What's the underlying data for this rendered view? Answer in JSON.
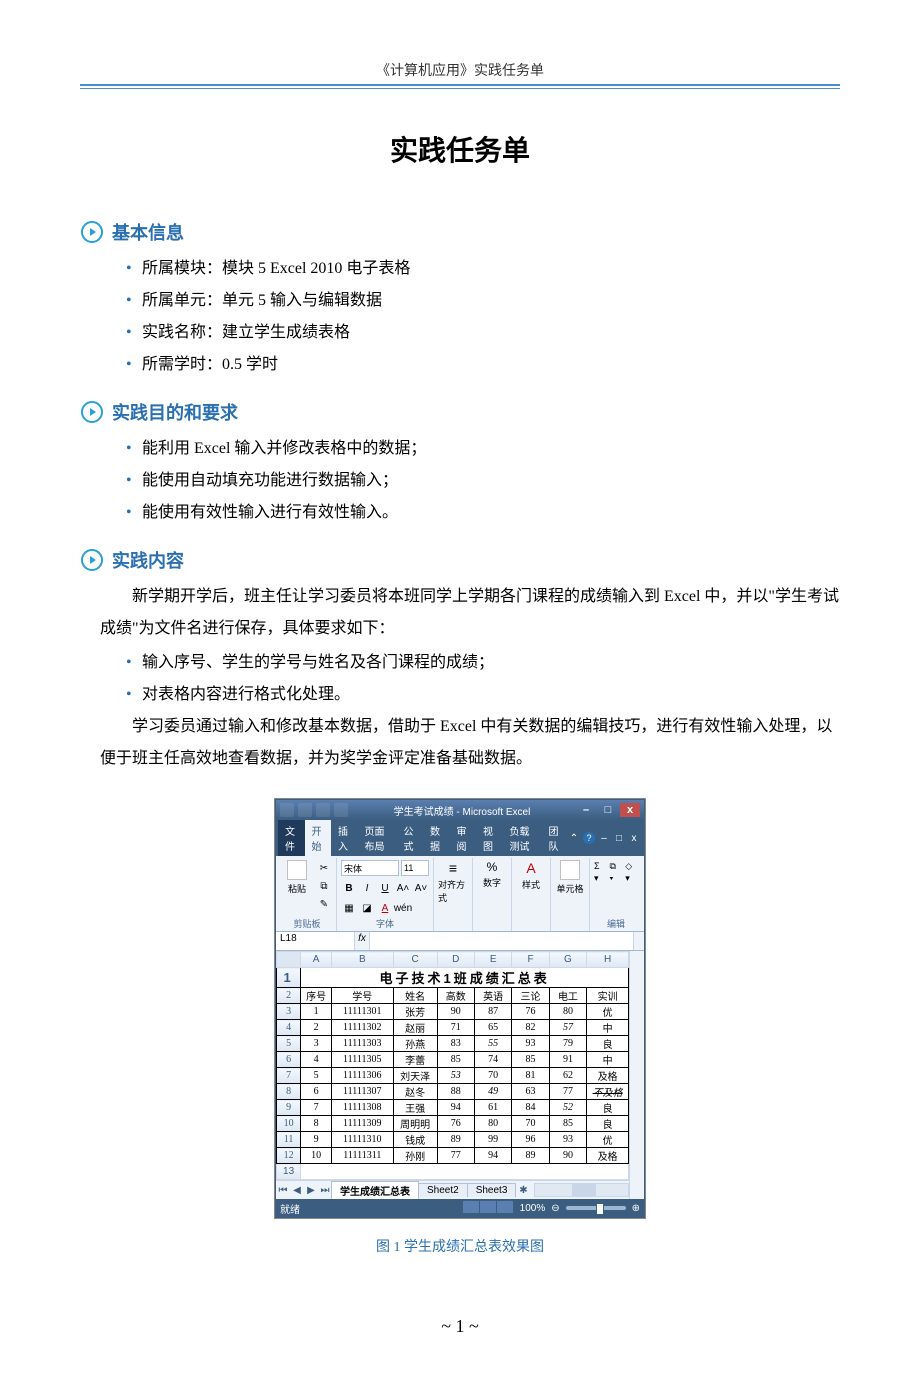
{
  "header": {
    "running_title": "《计算机应用》实践任务单"
  },
  "title": "实践任务单",
  "sections": {
    "basic": {
      "heading": "基本信息",
      "items": [
        "所属模块：模块 5 Excel 2010 电子表格",
        "所属单元：单元 5  输入与编辑数据",
        "实践名称：建立学生成绩表格",
        "所需学时：0.5 学时"
      ]
    },
    "goal": {
      "heading": "实践目的和要求",
      "items": [
        "能利用 Excel 输入并修改表格中的数据；",
        "能使用自动填充功能进行数据输入；",
        "能使用有效性输入进行有效性输入。"
      ]
    },
    "content": {
      "heading": "实践内容",
      "para1": "新学期开学后，班主任让学习委员将本班同学上学期各门课程的成绩输入到 Excel 中，并以\"学生考试成绩\"为文件名进行保存，具体要求如下：",
      "bullets": [
        "输入序号、学生的学号与姓名及各门课程的成绩；",
        "对表格内容进行格式化处理。"
      ],
      "para2": "学习委员通过输入和修改基本数据，借助于 Excel 中有关数据的编辑技巧，进行有效性输入处理，以便于班主任高效地查看数据，并为奖学金评定准备基础数据。"
    }
  },
  "figure_caption": "图 1  学生成绩汇总表效果图",
  "page_number": "~ 1 ~",
  "icon": {
    "stroke": "#2a9fd6",
    "fill_inner": "#2a9fd6"
  },
  "excel": {
    "window_title": "学生考试成绩 - Microsoft Excel",
    "tabs": [
      "文件",
      "开始",
      "插入",
      "页面布局",
      "公式",
      "数据",
      "审阅",
      "视图",
      "负载测试",
      "团队"
    ],
    "active_tab_index": 1,
    "ribbon_groups": {
      "clipboard": "剪贴板",
      "paste": "粘贴",
      "font": "字体",
      "font_name": "宋体",
      "font_size": "11",
      "align": "对齐方式",
      "number": "数字",
      "styles": "样式",
      "cells": "单元格",
      "editing": "编辑"
    },
    "name_box": "L18",
    "fx": "fx",
    "col_headers": [
      "A",
      "B",
      "C",
      "D",
      "E",
      "F",
      "G",
      "H"
    ],
    "row_headers": [
      "1",
      "2",
      "3",
      "4",
      "5",
      "6",
      "7",
      "8",
      "9",
      "10",
      "11",
      "12",
      "13"
    ],
    "table_title": "电子技术1班成绩汇总表",
    "header_row": [
      "序号",
      "学号",
      "姓名",
      "高数",
      "英语",
      "三论",
      "电工",
      "实训"
    ],
    "rows": [
      {
        "n": "1",
        "id": "11111301",
        "name": "张芳",
        "c1": "90",
        "c2": "87",
        "c3": "76",
        "c4": "80",
        "r": "优"
      },
      {
        "n": "2",
        "id": "11111302",
        "name": "赵丽",
        "c1": "71",
        "c2": "65",
        "c3": "82",
        "c4": "57",
        "r": "中",
        "c4_italic": true
      },
      {
        "n": "3",
        "id": "11111303",
        "name": "孙燕",
        "c1": "83",
        "c2": "55",
        "c3": "93",
        "c4": "79",
        "r": "良",
        "c2_italic": true
      },
      {
        "n": "4",
        "id": "11111305",
        "name": "李蕾",
        "c1": "85",
        "c2": "74",
        "c3": "85",
        "c4": "91",
        "r": "中"
      },
      {
        "n": "5",
        "id": "11111306",
        "name": "刘天泽",
        "c1": "53",
        "c2": "70",
        "c3": "81",
        "c4": "62",
        "r": "及格",
        "c1_italic": true
      },
      {
        "n": "6",
        "id": "11111307",
        "name": "赵冬",
        "c1": "88",
        "c2": "49",
        "c3": "63",
        "c4": "77",
        "r": "不及格",
        "c2_italic": true,
        "r_italic": true,
        "r_strike": true
      },
      {
        "n": "7",
        "id": "11111308",
        "name": "王强",
        "c1": "94",
        "c2": "61",
        "c3": "84",
        "c4": "52",
        "r": "良",
        "c4_italic": true
      },
      {
        "n": "8",
        "id": "11111309",
        "name": "周明明",
        "c1": "76",
        "c2": "80",
        "c3": "70",
        "c4": "85",
        "r": "良"
      },
      {
        "n": "9",
        "id": "11111310",
        "name": "钱成",
        "c1": "89",
        "c2": "99",
        "c3": "96",
        "c4": "93",
        "r": "优"
      },
      {
        "n": "10",
        "id": "11111311",
        "name": "孙刚",
        "c1": "77",
        "c2": "94",
        "c3": "89",
        "c4": "90",
        "r": "及格"
      }
    ],
    "sheet_tabs": [
      "学生成绩汇总表",
      "Sheet2",
      "Sheet3"
    ],
    "status_ready": "就绪",
    "zoom": "100%",
    "percent_sign": "%",
    "align_glyph": "≡",
    "style_A": "A"
  }
}
